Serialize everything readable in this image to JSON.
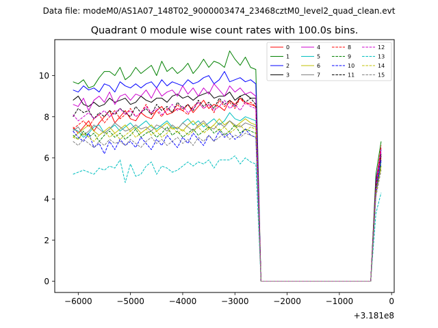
{
  "suptitle": "Data file: modeM0/AS1A07_148T02_9000003474_23468cztM0_level2_quad_clean.evt",
  "offset_label": "+3.181e8",
  "chart_data": {
    "type": "line",
    "title": "Quadrant 0 module wise count rates with 100.0s bins.",
    "xlabel": "",
    "ylabel": "",
    "x_offset": 318100000,
    "xlim": [
      -6450,
      50
    ],
    "ylim": [
      -0.55,
      11.75
    ],
    "xticks": [
      -6000,
      -5000,
      -4000,
      -3000,
      -2000,
      -1000,
      0
    ],
    "xtick_labels": [
      "−6000",
      "−5000",
      "−4000",
      "−3000",
      "−2000",
      "−1000",
      "0"
    ],
    "yticks": [
      0,
      2,
      4,
      6,
      8,
      10
    ],
    "ytick_labels": [
      "0",
      "2",
      "4",
      "6",
      "8",
      "10"
    ],
    "grid": false,
    "legend_location": "upper right",
    "legend_columns": 4,
    "x": [
      -6100,
      -6000,
      -5900,
      -5800,
      -5700,
      -5600,
      -5500,
      -5400,
      -5300,
      -5200,
      -5100,
      -5000,
      -4900,
      -4800,
      -4700,
      -4600,
      -4500,
      -4400,
      -4300,
      -4200,
      -4100,
      -4000,
      -3900,
      -3800,
      -3700,
      -3600,
      -3500,
      -3400,
      -3300,
      -3200,
      -3100,
      -3000,
      -2900,
      -2800,
      -2700,
      -2600,
      -2500,
      -2400,
      -2300,
      -2200,
      -2100,
      -2000,
      -1900,
      -1800,
      -1700,
      -1600,
      -1500,
      -1400,
      -1300,
      -1200,
      -1100,
      -1000,
      -900,
      -800,
      -700,
      -600,
      -500,
      -400,
      -300,
      -200
    ],
    "series": [
      {
        "name": "0",
        "color": "#ff0000",
        "dash": "solid",
        "values": [
          7.5,
          7.2,
          7.5,
          7.8,
          7.3,
          7.7,
          8.0,
          8.3,
          7.7,
          8.0,
          8.3,
          7.9,
          7.8,
          8.2,
          8.0,
          7.9,
          8.3,
          8.5,
          8.1,
          8.2,
          8.4,
          8.3,
          8.6,
          8.2,
          8.5,
          8.8,
          8.4,
          8.6,
          8.5,
          8.3,
          8.8,
          8.6,
          8.9,
          8.7,
          8.6,
          8.5,
          0,
          0,
          0,
          0,
          0,
          0,
          0,
          0,
          0,
          0,
          0,
          0,
          0,
          0,
          0,
          0,
          0,
          0,
          0,
          0,
          0,
          0,
          5.0,
          6.0
        ]
      },
      {
        "name": "1",
        "color": "#008000",
        "dash": "solid",
        "values": [
          9.7,
          9.6,
          9.8,
          9.4,
          9.5,
          9.9,
          10.2,
          10.2,
          10.0,
          10.4,
          9.8,
          10.0,
          10.4,
          10.1,
          10.3,
          10.5,
          10.0,
          10.7,
          10.2,
          10.4,
          10.1,
          10.3,
          10.6,
          10.1,
          10.4,
          10.8,
          10.4,
          10.7,
          10.6,
          10.4,
          11.2,
          10.8,
          10.5,
          10.9,
          10.4,
          10.3,
          0,
          0,
          0,
          0,
          0,
          0,
          0,
          0,
          0,
          0,
          0,
          0,
          0,
          0,
          0,
          0,
          0,
          0,
          0,
          0,
          0,
          0,
          5.2,
          6.8
        ]
      },
      {
        "name": "2",
        "color": "#0000ff",
        "dash": "solid",
        "values": [
          9.3,
          9.2,
          9.5,
          9.3,
          9.4,
          9.2,
          9.6,
          9.5,
          9.2,
          9.7,
          9.5,
          9.4,
          9.6,
          9.4,
          9.6,
          9.7,
          9.4,
          9.8,
          9.5,
          9.7,
          9.6,
          9.5,
          9.8,
          9.6,
          9.7,
          9.9,
          10.0,
          9.6,
          9.8,
          10.2,
          9.7,
          9.8,
          9.9,
          9.7,
          9.8,
          9.6,
          0,
          0,
          0,
          0,
          0,
          0,
          0,
          0,
          0,
          0,
          0,
          0,
          0,
          0,
          0,
          0,
          0,
          0,
          0,
          0,
          0,
          0,
          4.9,
          6.4
        ]
      },
      {
        "name": "3",
        "color": "#000000",
        "dash": "solid",
        "values": [
          8.8,
          9.0,
          8.6,
          8.5,
          8.7,
          8.5,
          8.6,
          8.9,
          8.7,
          8.8,
          8.9,
          8.6,
          8.7,
          9.0,
          8.8,
          8.7,
          8.9,
          8.9,
          8.7,
          9.0,
          9.1,
          8.9,
          9.0,
          8.8,
          9.0,
          9.1,
          9.2,
          8.9,
          9.0,
          9.0,
          9.2,
          8.8,
          9.0,
          9.1,
          8.9,
          8.9,
          0,
          0,
          0,
          0,
          0,
          0,
          0,
          0,
          0,
          0,
          0,
          0,
          0,
          0,
          0,
          0,
          0,
          0,
          0,
          0,
          0,
          0,
          4.8,
          6.2
        ]
      },
      {
        "name": "4",
        "color": "#cc00cc",
        "dash": "solid",
        "values": [
          8.6,
          8.5,
          8.9,
          8.3,
          8.8,
          9.0,
          8.7,
          9.2,
          8.6,
          9.0,
          9.1,
          8.8,
          9.1,
          9.0,
          9.3,
          8.9,
          9.4,
          9.0,
          9.2,
          9.3,
          9.0,
          9.5,
          9.1,
          9.4,
          9.0,
          9.4,
          9.1,
          9.6,
          9.3,
          9.0,
          9.5,
          9.2,
          9.4,
          9.1,
          9.2,
          9.0,
          0,
          0,
          0,
          0,
          0,
          0,
          0,
          0,
          0,
          0,
          0,
          0,
          0,
          0,
          0,
          0,
          0,
          0,
          0,
          0,
          0,
          0,
          4.7,
          6.5
        ]
      },
      {
        "name": "5",
        "color": "#00bfbf",
        "dash": "solid",
        "values": [
          7.4,
          7.3,
          7.0,
          7.2,
          7.5,
          7.6,
          7.2,
          7.4,
          7.6,
          7.3,
          7.5,
          7.7,
          7.4,
          7.6,
          7.8,
          7.5,
          7.4,
          7.6,
          7.8,
          7.5,
          7.4,
          7.7,
          7.9,
          7.6,
          7.8,
          7.5,
          7.7,
          7.9,
          7.6,
          7.8,
          8.2,
          7.9,
          7.8,
          8.0,
          7.9,
          7.8,
          0,
          0,
          0,
          0,
          0,
          0,
          0,
          0,
          0,
          0,
          0,
          0,
          0,
          0,
          0,
          0,
          0,
          0,
          0,
          0,
          0,
          0,
          4.6,
          5.8
        ]
      },
      {
        "name": "6",
        "color": "#bfbf00",
        "dash": "solid",
        "values": [
          7.0,
          7.2,
          7.4,
          7.6,
          7.3,
          7.1,
          7.3,
          7.5,
          7.2,
          7.4,
          7.6,
          7.3,
          7.5,
          7.2,
          7.4,
          7.6,
          7.3,
          7.5,
          7.7,
          7.4,
          7.5,
          7.3,
          7.6,
          7.8,
          7.5,
          7.7,
          7.4,
          7.6,
          7.9,
          7.6,
          7.8,
          7.5,
          7.7,
          7.9,
          7.7,
          7.6,
          0,
          0,
          0,
          0,
          0,
          0,
          0,
          0,
          0,
          0,
          0,
          0,
          0,
          0,
          0,
          0,
          0,
          0,
          0,
          0,
          0,
          0,
          4.3,
          5.6
        ]
      },
      {
        "name": "7",
        "color": "#808080",
        "dash": "solid",
        "values": [
          7.3,
          7.5,
          7.1,
          7.3,
          7.6,
          7.4,
          7.2,
          7.4,
          7.7,
          7.5,
          7.3,
          7.4,
          7.6,
          7.4,
          7.5,
          7.3,
          7.6,
          7.5,
          7.3,
          7.6,
          7.4,
          7.7,
          7.5,
          7.3,
          7.6,
          7.8,
          7.5,
          7.4,
          7.7,
          7.5,
          7.8,
          7.6,
          7.5,
          7.7,
          7.6,
          7.5,
          0,
          0,
          0,
          0,
          0,
          0,
          0,
          0,
          0,
          0,
          0,
          0,
          0,
          0,
          0,
          0,
          0,
          0,
          0,
          0,
          0,
          0,
          4.4,
          5.9
        ]
      },
      {
        "name": "8",
        "color": "#ff0000",
        "dash": "dashed",
        "values": [
          7.4,
          7.6,
          7.8,
          7.5,
          7.9,
          8.1,
          7.7,
          8.0,
          8.3,
          7.9,
          8.1,
          8.4,
          8.0,
          8.2,
          8.6,
          8.1,
          8.3,
          8.0,
          8.4,
          8.2,
          8.6,
          8.3,
          8.1,
          8.5,
          8.7,
          8.4,
          8.6,
          8.2,
          8.8,
          8.5,
          8.7,
          8.4,
          8.9,
          8.6,
          8.7,
          8.5,
          0,
          0,
          0,
          0,
          0,
          0,
          0,
          0,
          0,
          0,
          0,
          0,
          0,
          0,
          0,
          0,
          0,
          0,
          0,
          0,
          0,
          0,
          4.7,
          6.6
        ]
      },
      {
        "name": "9",
        "color": "#008000",
        "dash": "dashed",
        "values": [
          7.1,
          6.9,
          7.3,
          7.0,
          7.2,
          6.8,
          7.1,
          7.3,
          7.0,
          7.2,
          6.9,
          7.1,
          7.4,
          7.0,
          7.2,
          7.3,
          7.0,
          7.2,
          7.5,
          7.1,
          7.3,
          7.0,
          7.2,
          7.4,
          7.1,
          7.3,
          7.5,
          7.2,
          7.4,
          7.1,
          7.3,
          7.6,
          7.2,
          7.4,
          7.3,
          7.2,
          0,
          0,
          0,
          0,
          0,
          0,
          0,
          0,
          0,
          0,
          0,
          0,
          0,
          0,
          0,
          0,
          0,
          0,
          0,
          0,
          0,
          0,
          4.5,
          5.7
        ]
      },
      {
        "name": "10",
        "color": "#0000ff",
        "dash": "dashed",
        "values": [
          7.3,
          7.0,
          6.8,
          7.2,
          6.5,
          6.7,
          6.2,
          6.8,
          6.4,
          6.9,
          6.6,
          6.8,
          6.5,
          7.0,
          6.7,
          6.4,
          6.9,
          6.6,
          7.1,
          6.8,
          6.5,
          7.0,
          6.7,
          7.2,
          6.9,
          6.6,
          7.1,
          6.8,
          7.3,
          7.0,
          7.2,
          6.9,
          7.1,
          7.4,
          7.1,
          7.0,
          0,
          0,
          0,
          0,
          0,
          0,
          0,
          0,
          0,
          0,
          0,
          0,
          0,
          0,
          0,
          0,
          0,
          0,
          0,
          0,
          0,
          0,
          4.2,
          5.9
        ]
      },
      {
        "name": "11",
        "color": "#000000",
        "dash": "dashed",
        "values": [
          8.0,
          8.4,
          8.2,
          8.3,
          7.9,
          8.2,
          8.0,
          8.3,
          8.1,
          8.4,
          8.2,
          8.0,
          8.5,
          8.2,
          8.4,
          8.1,
          8.6,
          8.3,
          8.5,
          8.2,
          8.7,
          8.4,
          8.6,
          8.3,
          8.8,
          8.5,
          8.7,
          8.4,
          8.9,
          8.6,
          8.8,
          8.5,
          9.0,
          8.7,
          8.9,
          8.6,
          0,
          0,
          0,
          0,
          0,
          0,
          0,
          0,
          0,
          0,
          0,
          0,
          0,
          0,
          0,
          0,
          0,
          0,
          0,
          0,
          0,
          0,
          4.6,
          6.1
        ]
      },
      {
        "name": "12",
        "color": "#cc00cc",
        "dash": "dashed",
        "values": [
          8.1,
          7.8,
          8.0,
          8.2,
          7.9,
          8.1,
          8.3,
          8.0,
          8.2,
          8.4,
          8.1,
          8.3,
          8.0,
          8.2,
          8.5,
          8.2,
          8.4,
          8.1,
          8.3,
          8.6,
          8.3,
          8.5,
          8.2,
          8.4,
          8.7,
          8.4,
          8.6,
          8.3,
          8.5,
          8.8,
          8.4,
          8.6,
          8.3,
          8.7,
          8.5,
          8.4,
          0,
          0,
          0,
          0,
          0,
          0,
          0,
          0,
          0,
          0,
          0,
          0,
          0,
          0,
          0,
          0,
          0,
          0,
          0,
          0,
          0,
          0,
          4.5,
          6.3
        ]
      },
      {
        "name": "13",
        "color": "#00bfbf",
        "dash": "dashed",
        "values": [
          5.2,
          5.3,
          5.4,
          5.3,
          5.2,
          5.5,
          5.4,
          5.6,
          5.5,
          5.9,
          4.8,
          5.7,
          5.1,
          5.2,
          5.6,
          5.8,
          5.2,
          5.6,
          5.5,
          5.3,
          5.4,
          5.6,
          5.8,
          5.6,
          5.8,
          5.7,
          5.9,
          5.5,
          5.9,
          5.9,
          5.9,
          6.1,
          5.7,
          6.0,
          5.8,
          5.7,
          0,
          0,
          0,
          0,
          0,
          0,
          0,
          0,
          0,
          0,
          0,
          0,
          0,
          0,
          0,
          0,
          0,
          0,
          0,
          0,
          0,
          0,
          3.3,
          4.3
        ]
      },
      {
        "name": "14",
        "color": "#bfbf00",
        "dash": "dashed",
        "values": [
          7.0,
          6.9,
          7.2,
          7.0,
          6.8,
          7.1,
          7.3,
          7.0,
          7.2,
          6.9,
          7.1,
          7.3,
          7.0,
          7.2,
          7.4,
          7.1,
          7.3,
          7.0,
          7.2,
          7.5,
          7.2,
          7.4,
          7.1,
          7.3,
          7.5,
          7.2,
          7.4,
          7.6,
          7.3,
          7.5,
          7.2,
          7.4,
          7.6,
          7.3,
          7.5,
          7.4,
          0,
          0,
          0,
          0,
          0,
          0,
          0,
          0,
          0,
          0,
          0,
          0,
          0,
          0,
          0,
          0,
          0,
          0,
          0,
          0,
          0,
          0,
          4.3,
          5.5
        ]
      },
      {
        "name": "15",
        "color": "#808080",
        "dash": "dashed",
        "values": [
          6.8,
          6.6,
          6.9,
          6.7,
          6.5,
          6.8,
          6.6,
          6.9,
          6.7,
          6.8,
          6.6,
          6.9,
          6.7,
          6.5,
          6.8,
          7.0,
          6.7,
          6.9,
          6.6,
          6.8,
          7.0,
          6.7,
          6.9,
          6.6,
          7.0,
          6.8,
          7.1,
          6.8,
          7.0,
          7.2,
          6.9,
          7.1,
          7.0,
          7.2,
          7.1,
          7.0,
          0,
          0,
          0,
          0,
          0,
          0,
          0,
          0,
          0,
          0,
          0,
          0,
          0,
          0,
          0,
          0,
          0,
          0,
          0,
          0,
          0,
          0,
          4.1,
          5.4
        ]
      }
    ]
  }
}
